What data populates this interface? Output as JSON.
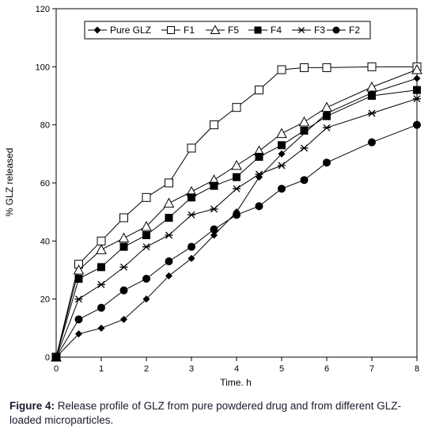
{
  "chart_data": {
    "type": "line",
    "xlabel": "Time. h",
    "ylabel": "% GLZ released",
    "xlim": [
      0,
      8
    ],
    "ylim": [
      0,
      120
    ],
    "x_ticks": [
      0,
      1,
      2,
      3,
      4,
      5,
      6,
      7,
      8
    ],
    "y_ticks": [
      0,
      20,
      40,
      60,
      80,
      100,
      120
    ],
    "grid": false,
    "legend_position": "top",
    "series": [
      {
        "name": "Pure GLZ",
        "marker": "diamond-filled",
        "x": [
          0,
          0.5,
          1,
          1.5,
          2,
          2.5,
          3,
          3.5,
          4,
          4.5,
          5,
          6,
          7,
          8
        ],
        "y": [
          0,
          8,
          10,
          13,
          20,
          28,
          34,
          42,
          50,
          62,
          70,
          84,
          91,
          96
        ]
      },
      {
        "name": "F1",
        "marker": "square-open",
        "x": [
          0,
          0.5,
          1,
          1.5,
          2,
          2.5,
          3,
          3.5,
          4,
          4.5,
          5,
          5.5,
          6,
          7,
          8
        ],
        "y": [
          0,
          32,
          40,
          48,
          55,
          60,
          72,
          80,
          86,
          92,
          99,
          99.7,
          99.7,
          100,
          100
        ]
      },
      {
        "name": "F5",
        "marker": "triangle-open",
        "x": [
          0,
          0.5,
          1,
          1.5,
          2,
          2.5,
          3,
          3.5,
          4,
          4.5,
          5,
          5.5,
          6,
          7,
          8
        ],
        "y": [
          0,
          30,
          37,
          41,
          45,
          53,
          57,
          61,
          66,
          71,
          77,
          81,
          86,
          93,
          99
        ]
      },
      {
        "name": "F4",
        "marker": "square-filled",
        "x": [
          0,
          0.5,
          1,
          1.5,
          2,
          2.5,
          3,
          3.5,
          4,
          4.5,
          5,
          5.5,
          6,
          7,
          8
        ],
        "y": [
          0,
          27,
          31,
          38,
          42,
          48,
          55,
          59,
          62,
          69,
          73,
          78,
          83,
          90,
          92
        ]
      },
      {
        "name": "F3",
        "marker": "star",
        "x": [
          0,
          0.5,
          1,
          1.5,
          2,
          2.5,
          3,
          3.5,
          4,
          4.5,
          5,
          5.5,
          6,
          7,
          8
        ],
        "y": [
          0,
          20,
          25,
          31,
          38,
          42,
          49,
          51,
          58,
          63,
          66,
          72,
          79,
          84,
          89
        ]
      },
      {
        "name": "F2",
        "marker": "circle-filled",
        "x": [
          0,
          0.5,
          1,
          1.5,
          2,
          2.5,
          3,
          3.5,
          4,
          4.5,
          5,
          5.5,
          6,
          7,
          8
        ],
        "y": [
          0,
          13,
          17,
          23,
          27,
          33,
          38,
          44,
          49,
          52,
          58,
          61,
          67,
          74,
          80
        ]
      }
    ]
  },
  "caption": {
    "label": "Figure 4:",
    "text": " Release profile of GLZ from pure powdered drug and from different GLZ-loaded microparticles."
  }
}
